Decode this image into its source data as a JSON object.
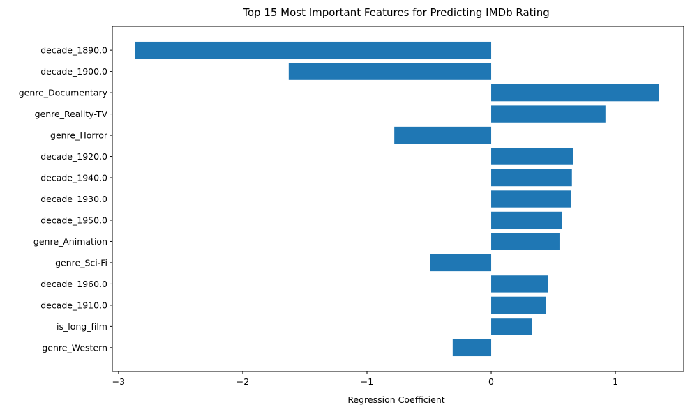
{
  "chart_data": {
    "type": "bar",
    "orientation": "horizontal",
    "title": "Top 15 Most Important Features for Predicting IMDb Rating",
    "xlabel": "Regression Coefficient",
    "ylabel": "",
    "xlim": [
      -3.05,
      1.55
    ],
    "xticks": [
      -3,
      -2,
      -1,
      0,
      1
    ],
    "xtick_labels": [
      "−3",
      "−2",
      "−1",
      "0",
      "1"
    ],
    "grid": false,
    "legend": "none",
    "bar_color": "#1f77b4",
    "categories": [
      "decade_1890.0",
      "decade_1900.0",
      "genre_Documentary",
      "genre_Reality-TV",
      "genre_Horror",
      "decade_1920.0",
      "decade_1940.0",
      "decade_1930.0",
      "decade_1950.0",
      "genre_Animation",
      "genre_Sci-Fi",
      "decade_1960.0",
      "decade_1910.0",
      "is_long_film",
      "genre_Western"
    ],
    "values": [
      -2.87,
      -1.63,
      1.35,
      0.92,
      -0.78,
      0.66,
      0.65,
      0.64,
      0.57,
      0.55,
      -0.49,
      0.46,
      0.44,
      0.33,
      -0.31
    ]
  }
}
